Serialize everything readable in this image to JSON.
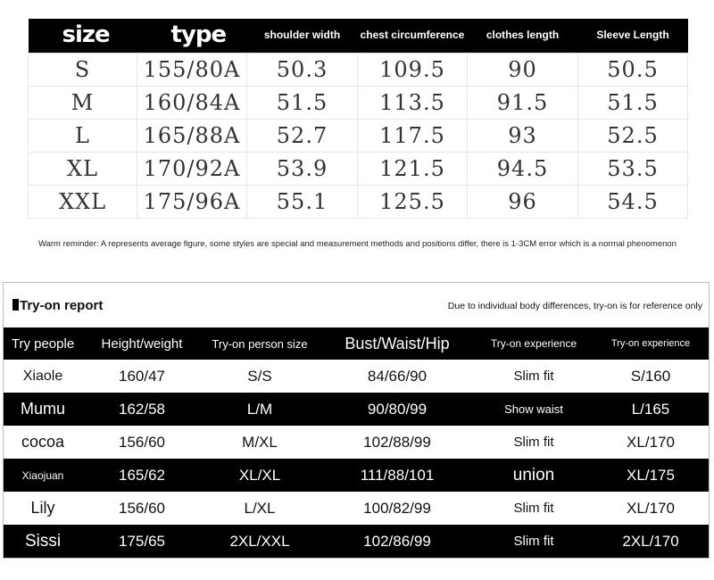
{
  "size_chart": {
    "headers": [
      "size",
      "type",
      "shoulder width",
      "chest circumference",
      "clothes length",
      "Sleeve Length"
    ],
    "rows": [
      [
        "S",
        "155/80A",
        "50.3",
        "109.5",
        "90",
        "50.5"
      ],
      [
        "M",
        "160/84A",
        "51.5",
        "113.5",
        "91.5",
        "51.5"
      ],
      [
        "L",
        "165/88A",
        "52.7",
        "117.5",
        "93",
        "52.5"
      ],
      [
        "XL",
        "170/92A",
        "53.9",
        "121.5",
        "94.5",
        "53.5"
      ],
      [
        "XXL",
        "175/96A",
        "55.1",
        "125.5",
        "96",
        "54.5"
      ]
    ]
  },
  "reminder": "Warm reminder: A represents average figure, some styles are special and measurement methods and positions differ, there is 1-3CM error which is a normal phenomenon",
  "report": {
    "title": "Try-on report",
    "note": "Due to individual body differences, try-on is for reference only",
    "headers": [
      "Try people",
      "Height/weight",
      "Try-on person size",
      "Bust/Waist/Hip",
      "Try-on experience",
      "Try-on experience"
    ],
    "rows": [
      [
        "Xiaole",
        "160/47",
        "S/S",
        "84/66/90",
        "Slim fit",
        "S/160"
      ],
      [
        "Mumu",
        "162/58",
        "L/M",
        "90/80/99",
        "Show waist",
        "L/165"
      ],
      [
        "cocoa",
        "156/60",
        "M/XL",
        "102/88/99",
        "Slim fit",
        "XL/170"
      ],
      [
        "Xiaojuan",
        "165/62",
        "XL/XL",
        "111/88/101",
        "union",
        "XL/175"
      ],
      [
        "Lily",
        "156/60",
        "L/XL",
        "100/82/99",
        "Slim fit",
        "XL/170"
      ],
      [
        "Sissi",
        "175/65",
        "2XL/XXL",
        "102/86/99",
        "Slim fit",
        "2XL/170"
      ]
    ]
  }
}
